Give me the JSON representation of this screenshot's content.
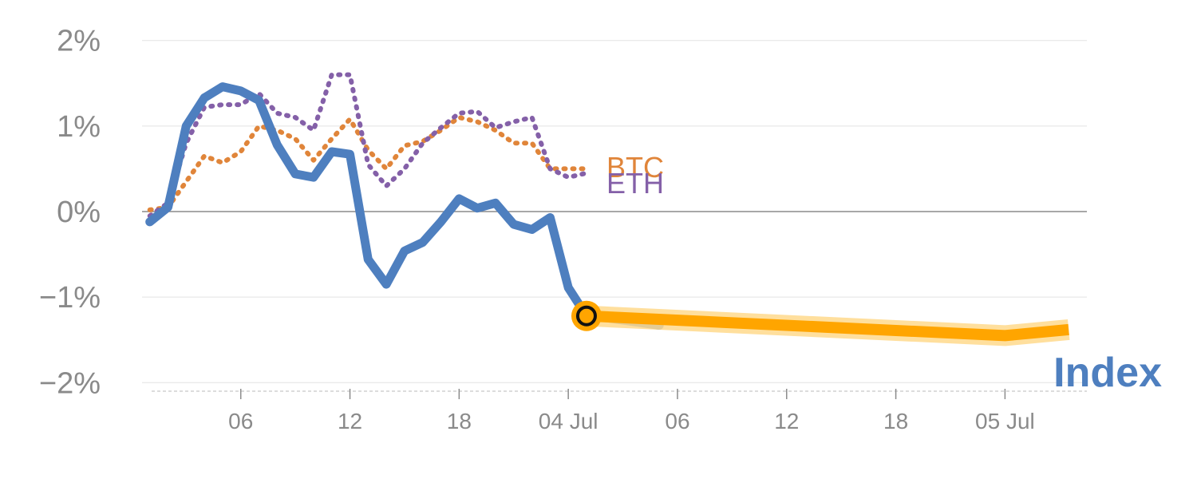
{
  "chart_data": {
    "type": "line",
    "x_tick_labels": [
      {
        "hour": 6,
        "label": "06"
      },
      {
        "hour": 12,
        "label": "12"
      },
      {
        "hour": 18,
        "label": "18"
      },
      {
        "hour": 24,
        "label": "04 Jul"
      },
      {
        "hour": 30,
        "label": "06"
      },
      {
        "hour": 36,
        "label": "12"
      },
      {
        "hour": 42,
        "label": "18"
      },
      {
        "hour": 48,
        "label": "05 Jul"
      }
    ],
    "y_ticks": [
      {
        "value": 2,
        "label": "2%"
      },
      {
        "value": 1,
        "label": "1%"
      },
      {
        "value": 0,
        "label": "0%"
      },
      {
        "value": -1,
        "label": "−1%"
      },
      {
        "value": -2,
        "label": "−2%"
      }
    ],
    "ylim": [
      -2.1,
      2.1
    ],
    "xlim_hours": [
      1.1,
      52.5
    ],
    "grid": true,
    "series": [
      {
        "name": "Index",
        "color": "#4e7fbf",
        "style": "solid",
        "x": [
          1,
          2,
          3,
          4,
          5,
          6,
          7,
          8,
          9,
          10,
          11,
          12,
          13,
          14,
          15,
          16,
          17,
          18,
          19,
          20,
          21,
          22,
          23,
          24,
          25,
          26,
          27,
          28,
          29
        ],
        "values": [
          -0.12,
          0.05,
          1.0,
          1.33,
          1.46,
          1.41,
          1.3,
          0.78,
          0.44,
          0.4,
          0.7,
          0.67,
          -0.56,
          -0.85,
          -0.46,
          -0.36,
          -0.12,
          0.15,
          0.04,
          0.1,
          -0.15,
          -0.21,
          -0.07,
          -0.89,
          -1.22,
          -1.24,
          -1.27,
          -1.3,
          -1.33
        ]
      },
      {
        "name": "BTC",
        "color": "#e0853a",
        "style": "dotted",
        "x": [
          1,
          2,
          3,
          4,
          5,
          6,
          7,
          8,
          9,
          10,
          11,
          12,
          13,
          14,
          15,
          16,
          17,
          18,
          19,
          20,
          21,
          22,
          23,
          24,
          25
        ],
        "values": [
          0.02,
          0.05,
          0.35,
          0.65,
          0.57,
          0.7,
          1.0,
          0.95,
          0.85,
          0.6,
          0.85,
          1.08,
          0.72,
          0.5,
          0.77,
          0.82,
          0.95,
          1.1,
          1.05,
          0.95,
          0.8,
          0.8,
          0.5,
          0.5,
          0.5
        ]
      },
      {
        "name": "ETH",
        "color": "#8460a8",
        "style": "dotted",
        "x": [
          1,
          2,
          3,
          4,
          5,
          6,
          7,
          8,
          9,
          10,
          11,
          12,
          13,
          14,
          15,
          16,
          17,
          18,
          19,
          20,
          21,
          22,
          23,
          24,
          25
        ],
        "values": [
          -0.05,
          0.1,
          0.8,
          1.22,
          1.25,
          1.25,
          1.38,
          1.15,
          1.1,
          0.95,
          1.6,
          1.6,
          0.55,
          0.3,
          0.5,
          0.8,
          0.98,
          1.15,
          1.17,
          0.98,
          1.05,
          1.1,
          0.5,
          0.4,
          0.45
        ]
      },
      {
        "name": "Index",
        "color": "#ffa500",
        "style": "forecast",
        "x": [
          25,
          48,
          51.5
        ],
        "values": [
          -1.22,
          -1.45,
          -1.38
        ]
      }
    ],
    "series_labels": {
      "btc": "BTC",
      "eth": "ETH",
      "index": "Index"
    },
    "marker": {
      "x": 25,
      "value": -1.22
    }
  }
}
